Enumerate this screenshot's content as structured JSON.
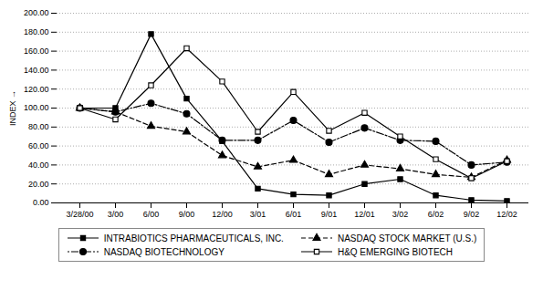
{
  "chart_data": {
    "type": "line",
    "categories": [
      "3/28/00",
      "3/00",
      "6/00",
      "9/00",
      "12/00",
      "3/01",
      "6/01",
      "9/01",
      "12/01",
      "3/02",
      "6/02",
      "9/02",
      "12/02"
    ],
    "series": [
      {
        "name": "INTRABIOTICS PHARMACEUTICALS, INC.",
        "color": "#000000",
        "marker": "square",
        "line_style": "solid",
        "values": [
          100.0,
          100.0,
          178.0,
          110.0,
          65.0,
          15.0,
          9.0,
          8.0,
          20.0,
          25.0,
          8.0,
          3.0,
          2.0
        ]
      },
      {
        "name": "NASDAQ STOCK MARKET (U.S.)",
        "color": "#000000",
        "marker": "triangle",
        "line_style": "dashed",
        "values": [
          100.0,
          96.0,
          81.0,
          75.0,
          50.0,
          38.0,
          45.0,
          30.0,
          40.0,
          36.0,
          30.0,
          27.0,
          45.0
        ]
      },
      {
        "name": "NASDAQ BIOTECHNOLOGY",
        "color": "#000000",
        "marker": "circle",
        "line_style": "dashdot",
        "values": [
          100.0,
          96.0,
          105.0,
          94.0,
          66.0,
          66.0,
          87.0,
          64.0,
          79.0,
          66.0,
          65.0,
          40.0,
          43.0
        ]
      },
      {
        "name": "H&Q EMERGING BIOTECH",
        "color": "#000000",
        "marker": "open square",
        "line_style": "solid",
        "values": [
          100.0,
          88.0,
          124.0,
          163.0,
          128.0,
          75.0,
          117.0,
          76.0,
          95.0,
          70.0,
          46.0,
          26.0,
          44.0
        ]
      }
    ],
    "ylabel": "INDEX",
    "ylim": [
      0.0,
      200.0
    ],
    "yticks": [
      {
        "value": 0.0,
        "label": "0.00"
      },
      {
        "value": 20.0,
        "label": "20.00"
      },
      {
        "value": 40.0,
        "label": "40.00"
      },
      {
        "value": 60.0,
        "label": "60.00"
      },
      {
        "value": 80.0,
        "label": "80.00"
      },
      {
        "value": 100.0,
        "label": "100.00"
      },
      {
        "value": 120.0,
        "label": "120.00"
      },
      {
        "value": 140.0,
        "label": "140.00"
      },
      {
        "value": 160.0,
        "label": "160.00"
      },
      {
        "value": 180.0,
        "label": "180.00"
      },
      {
        "value": 200.0,
        "label": "200.00"
      }
    ],
    "grid": true,
    "legend": "bottom"
  }
}
